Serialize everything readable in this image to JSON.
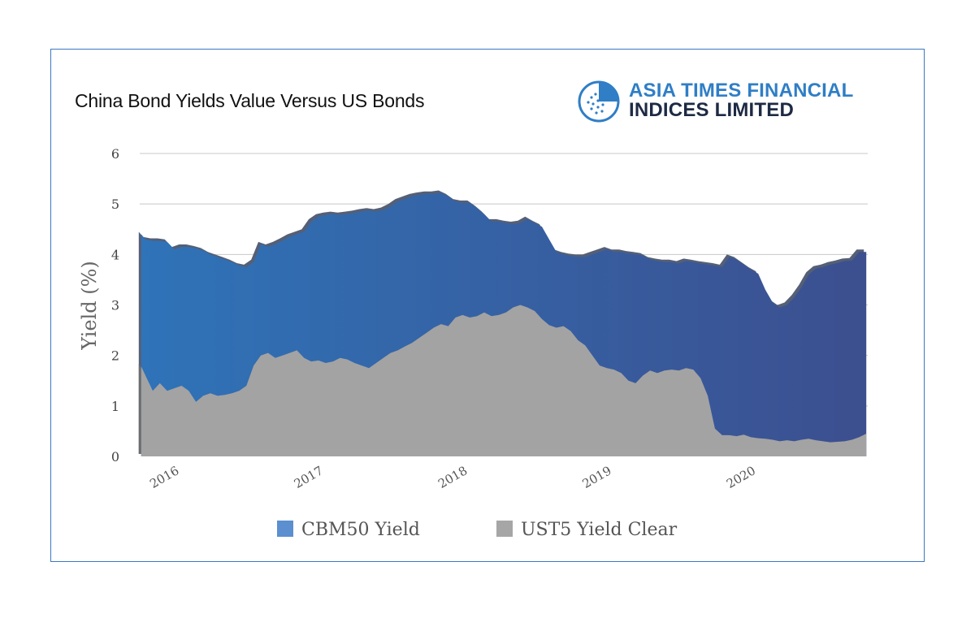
{
  "title": "China Bond Yields Value Versus US Bonds",
  "logo": {
    "line1": "ASIA TIMES FINANCIAL",
    "line2": "INDICES LIMITED",
    "icon": "atfi-logo-icon"
  },
  "colors": {
    "cbm": "#2f6fb3",
    "cbm_end": "#3c4f8f",
    "ust": "#a3a3a3",
    "frame": "#3b78c0",
    "grid": "#c8c8c8"
  },
  "chart_data": {
    "type": "area",
    "ylabel": "Yield (%)",
    "ylim": [
      0,
      6
    ],
    "yticks": [
      "0",
      "1",
      "2",
      "3",
      "4",
      "5",
      "6"
    ],
    "xticks": [
      {
        "label": "2016",
        "x": 2016.0
      },
      {
        "label": "2017",
        "x": 2017.0
      },
      {
        "label": "2018",
        "x": 2018.0
      },
      {
        "label": "2019",
        "x": 2019.0
      },
      {
        "label": "2020",
        "x": 2020.0
      }
    ],
    "xlim": [
      2015.86,
      2020.91
    ],
    "grid": true,
    "legend": "bottom",
    "series": [
      {
        "name": "CBM50 Yield",
        "x": [
          2015.87,
          2015.9,
          2015.95,
          2016.0,
          2016.05,
          2016.1,
          2016.15,
          2016.2,
          2016.25,
          2016.3,
          2016.35,
          2016.4,
          2016.45,
          2016.5,
          2016.55,
          2016.6,
          2016.65,
          2016.7,
          2016.75,
          2016.8,
          2016.85,
          2016.9,
          2016.95,
          2017.0,
          2017.05,
          2017.1,
          2017.15,
          2017.2,
          2017.25,
          2017.3,
          2017.35,
          2017.4,
          2017.45,
          2017.5,
          2017.55,
          2017.6,
          2017.65,
          2017.7,
          2017.75,
          2017.8,
          2017.85,
          2017.9,
          2017.95,
          2018.0,
          2018.05,
          2018.1,
          2018.15,
          2018.2,
          2018.25,
          2018.3,
          2018.35,
          2018.4,
          2018.45,
          2018.5,
          2018.55,
          2018.6,
          2018.65,
          2018.7,
          2018.75,
          2018.8,
          2018.85,
          2018.9,
          2018.95,
          2019.0,
          2019.05,
          2019.1,
          2019.15,
          2019.2,
          2019.25,
          2019.3,
          2019.35,
          2019.4,
          2019.45,
          2019.5,
          2019.55,
          2019.6,
          2019.65,
          2019.7,
          2019.75,
          2019.8,
          2019.85,
          2019.9,
          2019.95,
          2020.0,
          2020.05,
          2020.1,
          2020.15,
          2020.2,
          2020.25,
          2020.3,
          2020.35,
          2020.4,
          2020.45,
          2020.5,
          2020.55,
          2020.6,
          2020.65,
          2020.7,
          2020.75,
          2020.8,
          2020.85,
          2020.9
        ],
        "values": [
          4.4,
          4.3,
          4.27,
          4.27,
          4.25,
          4.1,
          4.15,
          4.15,
          4.12,
          4.08,
          4.0,
          3.95,
          3.9,
          3.85,
          3.78,
          3.75,
          3.85,
          4.2,
          4.15,
          4.2,
          4.27,
          4.35,
          4.4,
          4.45,
          4.65,
          4.75,
          4.78,
          4.8,
          4.78,
          4.8,
          4.82,
          4.85,
          4.87,
          4.85,
          4.88,
          4.95,
          5.05,
          5.1,
          5.15,
          5.18,
          5.2,
          5.2,
          5.22,
          5.15,
          5.05,
          5.02,
          5.02,
          4.92,
          4.8,
          4.65,
          4.65,
          4.62,
          4.6,
          4.62,
          4.7,
          4.62,
          4.55,
          4.3,
          4.05,
          4.0,
          3.97,
          3.95,
          3.95,
          4.0,
          4.05,
          4.1,
          4.05,
          4.05,
          4.02,
          4.0,
          3.98,
          3.9,
          3.87,
          3.85,
          3.85,
          3.82,
          3.87,
          3.85,
          3.82,
          3.8,
          3.78,
          3.75,
          3.95,
          3.9,
          3.8,
          3.7,
          3.62,
          3.3,
          3.05,
          2.95,
          3.0,
          3.15,
          3.35,
          3.6,
          3.72,
          3.75,
          3.8,
          3.83,
          3.87,
          3.88,
          4.05,
          4.05
        ]
      },
      {
        "name": "UST5 Yield Clear",
        "x": [
          2015.87,
          2015.9,
          2015.95,
          2016.0,
          2016.05,
          2016.1,
          2016.15,
          2016.2,
          2016.25,
          2016.3,
          2016.35,
          2016.4,
          2016.45,
          2016.5,
          2016.55,
          2016.6,
          2016.65,
          2016.7,
          2016.75,
          2016.8,
          2016.85,
          2016.9,
          2016.95,
          2017.0,
          2017.05,
          2017.1,
          2017.15,
          2017.2,
          2017.25,
          2017.3,
          2017.35,
          2017.4,
          2017.45,
          2017.5,
          2017.55,
          2017.6,
          2017.65,
          2017.7,
          2017.75,
          2017.8,
          2017.85,
          2017.9,
          2017.95,
          2018.0,
          2018.05,
          2018.1,
          2018.15,
          2018.2,
          2018.25,
          2018.3,
          2018.35,
          2018.4,
          2018.45,
          2018.5,
          2018.55,
          2018.6,
          2018.65,
          2018.7,
          2018.75,
          2018.8,
          2018.85,
          2018.9,
          2018.95,
          2019.0,
          2019.05,
          2019.1,
          2019.15,
          2019.2,
          2019.25,
          2019.3,
          2019.35,
          2019.4,
          2019.45,
          2019.5,
          2019.55,
          2019.6,
          2019.65,
          2019.7,
          2019.75,
          2019.8,
          2019.85,
          2019.9,
          2019.95,
          2020.0,
          2020.05,
          2020.1,
          2020.15,
          2020.2,
          2020.25,
          2020.3,
          2020.35,
          2020.4,
          2020.45,
          2020.5,
          2020.55,
          2020.6,
          2020.65,
          2020.7,
          2020.75,
          2020.8,
          2020.85,
          2020.9
        ],
        "values": [
          1.78,
          1.6,
          1.3,
          1.45,
          1.3,
          1.35,
          1.4,
          1.3,
          1.08,
          1.2,
          1.25,
          1.2,
          1.22,
          1.25,
          1.3,
          1.4,
          1.8,
          2.0,
          2.05,
          1.95,
          2.0,
          2.05,
          2.1,
          1.95,
          1.88,
          1.9,
          1.85,
          1.88,
          1.95,
          1.92,
          1.85,
          1.8,
          1.75,
          1.85,
          1.95,
          2.05,
          2.1,
          2.18,
          2.25,
          2.35,
          2.45,
          2.55,
          2.62,
          2.58,
          2.75,
          2.8,
          2.75,
          2.78,
          2.85,
          2.78,
          2.8,
          2.85,
          2.95,
          3.0,
          2.95,
          2.88,
          2.72,
          2.6,
          2.55,
          2.58,
          2.48,
          2.3,
          2.2,
          2.0,
          1.8,
          1.75,
          1.72,
          1.65,
          1.5,
          1.45,
          1.6,
          1.7,
          1.65,
          1.7,
          1.72,
          1.7,
          1.75,
          1.72,
          1.55,
          1.2,
          0.55,
          0.42,
          0.42,
          0.4,
          0.43,
          0.38,
          0.36,
          0.35,
          0.33,
          0.3,
          0.32,
          0.3,
          0.33,
          0.35,
          0.32,
          0.3,
          0.28,
          0.29,
          0.3,
          0.33,
          0.38,
          0.45
        ]
      }
    ]
  },
  "legend": [
    {
      "label": "CBM50 Yield",
      "color": "#5b8fd0"
    },
    {
      "label": "UST5 Yield Clear",
      "color": "#a6a6a6"
    }
  ]
}
